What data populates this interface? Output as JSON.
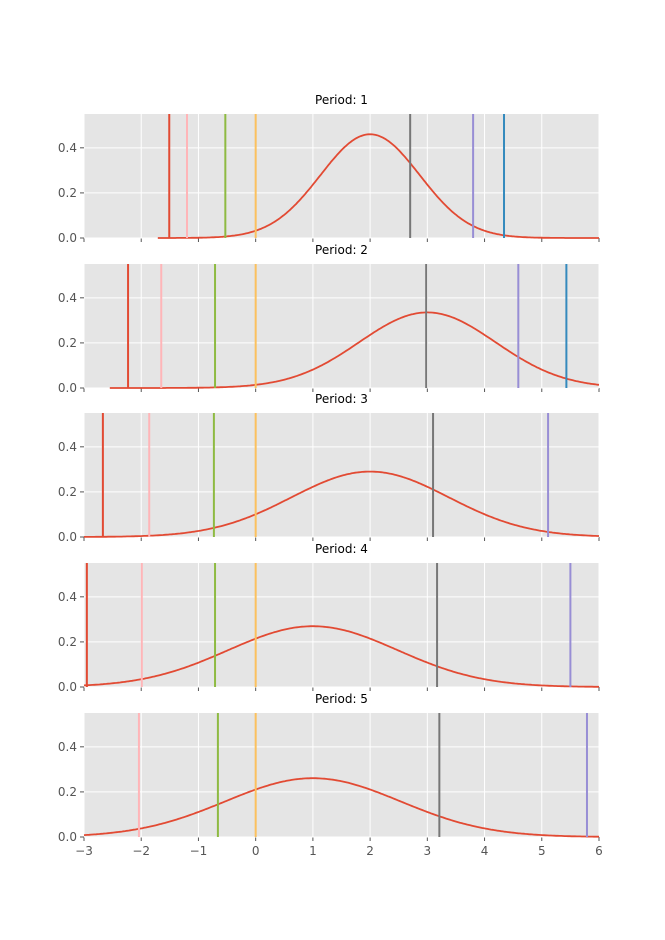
{
  "chart_data": [
    {
      "type": "line",
      "title": "Period: 1",
      "xlim": [
        -3,
        6
      ],
      "ylim": [
        0,
        0.55
      ],
      "grid": true,
      "curve": {
        "kind": "normal-pdf",
        "mean": 2,
        "sd": 0.867,
        "x_start": -1.71,
        "color": "#E24A33"
      },
      "vlines": [
        {
          "x": -1.51,
          "color": "#E24A33"
        },
        {
          "x": -1.2,
          "color": "#FFB5B8"
        },
        {
          "x": -0.53,
          "color": "#8EBA42"
        },
        {
          "x": 0,
          "color": "#FBC15E"
        },
        {
          "x": 2.7,
          "color": "#777777"
        },
        {
          "x": 3.8,
          "color": "#988ED5"
        },
        {
          "x": 4.34,
          "color": "#348ABD"
        }
      ]
    },
    {
      "type": "line",
      "title": "Period: 2",
      "xlim": [
        -3,
        6
      ],
      "ylim": [
        0,
        0.55
      ],
      "grid": true,
      "curve": {
        "kind": "normal-pdf",
        "mean": 3,
        "sd": 1.19,
        "x_start": -2.55,
        "color": "#E24A33"
      },
      "vlines": [
        {
          "x": -2.23,
          "color": "#E24A33"
        },
        {
          "x": -1.65,
          "color": "#FFB5B8"
        },
        {
          "x": -0.71,
          "color": "#8EBA42"
        },
        {
          "x": 0,
          "color": "#FBC15E"
        },
        {
          "x": 2.98,
          "color": "#777777"
        },
        {
          "x": 4.59,
          "color": "#988ED5"
        },
        {
          "x": 5.43,
          "color": "#348ABD"
        }
      ]
    },
    {
      "type": "line",
      "title": "Period: 3",
      "xlim": [
        -3,
        6
      ],
      "ylim": [
        0,
        0.55
      ],
      "grid": true,
      "curve": {
        "kind": "normal-pdf",
        "mean": 2,
        "sd": 1.375,
        "x_start": -3,
        "color": "#E24A33"
      },
      "vlines": [
        {
          "x": -2.67,
          "color": "#E24A33"
        },
        {
          "x": -1.86,
          "color": "#FFB5B8"
        },
        {
          "x": -0.73,
          "color": "#8EBA42"
        },
        {
          "x": 0,
          "color": "#FBC15E"
        },
        {
          "x": 3.1,
          "color": "#777777"
        },
        {
          "x": 5.11,
          "color": "#988ED5"
        }
      ]
    },
    {
      "type": "line",
      "title": "Period: 4",
      "xlim": [
        -3,
        6
      ],
      "ylim": [
        0,
        0.55
      ],
      "grid": true,
      "curve": {
        "kind": "normal-pdf",
        "mean": 1,
        "sd": 1.48,
        "x_start": -3,
        "color": "#E24A33"
      },
      "vlines": [
        {
          "x": -2.95,
          "color": "#E24A33"
        },
        {
          "x": -1.99,
          "color": "#FFB5B8"
        },
        {
          "x": -0.71,
          "color": "#8EBA42"
        },
        {
          "x": 0,
          "color": "#FBC15E"
        },
        {
          "x": 3.17,
          "color": "#777777"
        },
        {
          "x": 5.5,
          "color": "#988ED5"
        }
      ]
    },
    {
      "type": "line",
      "title": "Period: 5",
      "xlim": [
        -3,
        6
      ],
      "ylim": [
        0,
        0.55
      ],
      "grid": true,
      "curve": {
        "kind": "normal-pdf",
        "mean": 1,
        "sd": 1.53,
        "x_start": -3,
        "color": "#E24A33"
      },
      "vlines": [
        {
          "x": -2.04,
          "color": "#FFB5B8"
        },
        {
          "x": -0.66,
          "color": "#8EBA42"
        },
        {
          "x": 0,
          "color": "#FBC15E"
        },
        {
          "x": 3.21,
          "color": "#777777"
        },
        {
          "x": 5.79,
          "color": "#988ED5"
        }
      ]
    }
  ],
  "x_ticks": [
    "−3",
    "−2",
    "−1",
    "0",
    "1",
    "2",
    "3",
    "4",
    "5",
    "6"
  ],
  "x_tick_values": [
    -3,
    -2,
    -1,
    0,
    1,
    2,
    3,
    4,
    5,
    6
  ],
  "y_ticks": [
    "0.0",
    "0.2",
    "0.4"
  ],
  "y_tick_values": [
    0,
    0.2,
    0.4
  ],
  "colors": {
    "panel_bg": "#E5E5E5",
    "grid": "#FFFFFF"
  }
}
